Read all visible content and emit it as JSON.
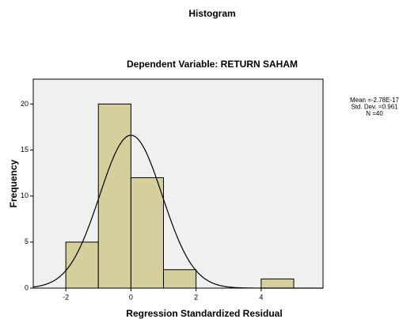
{
  "chart_data": {
    "type": "histogram",
    "title": "Histogram",
    "subtitle": "Dependent Variable: RETURN SAHAM",
    "x_label": "Regression Standardized Residual",
    "y_label": "Frequency",
    "bins": [
      -2,
      -1,
      0,
      1,
      2,
      3,
      4,
      5
    ],
    "values": [
      5,
      20,
      12,
      2,
      0,
      0,
      1
    ],
    "color": "#d4cf9c",
    "background": "#f0f0f0",
    "xlim": [
      -3,
      5.9
    ],
    "ylim": [
      0,
      22.7
    ],
    "xticks": [
      -2,
      0,
      2,
      4
    ],
    "yticks": [
      0,
      5,
      10,
      15,
      20
    ],
    "stats": [
      "Mean =-2.78E-17",
      "Std. Dev. =0.961",
      "N =40"
    ],
    "normal_curve": {
      "mean": -2.78e-17,
      "sd": 0.961,
      "n": 40
    }
  }
}
